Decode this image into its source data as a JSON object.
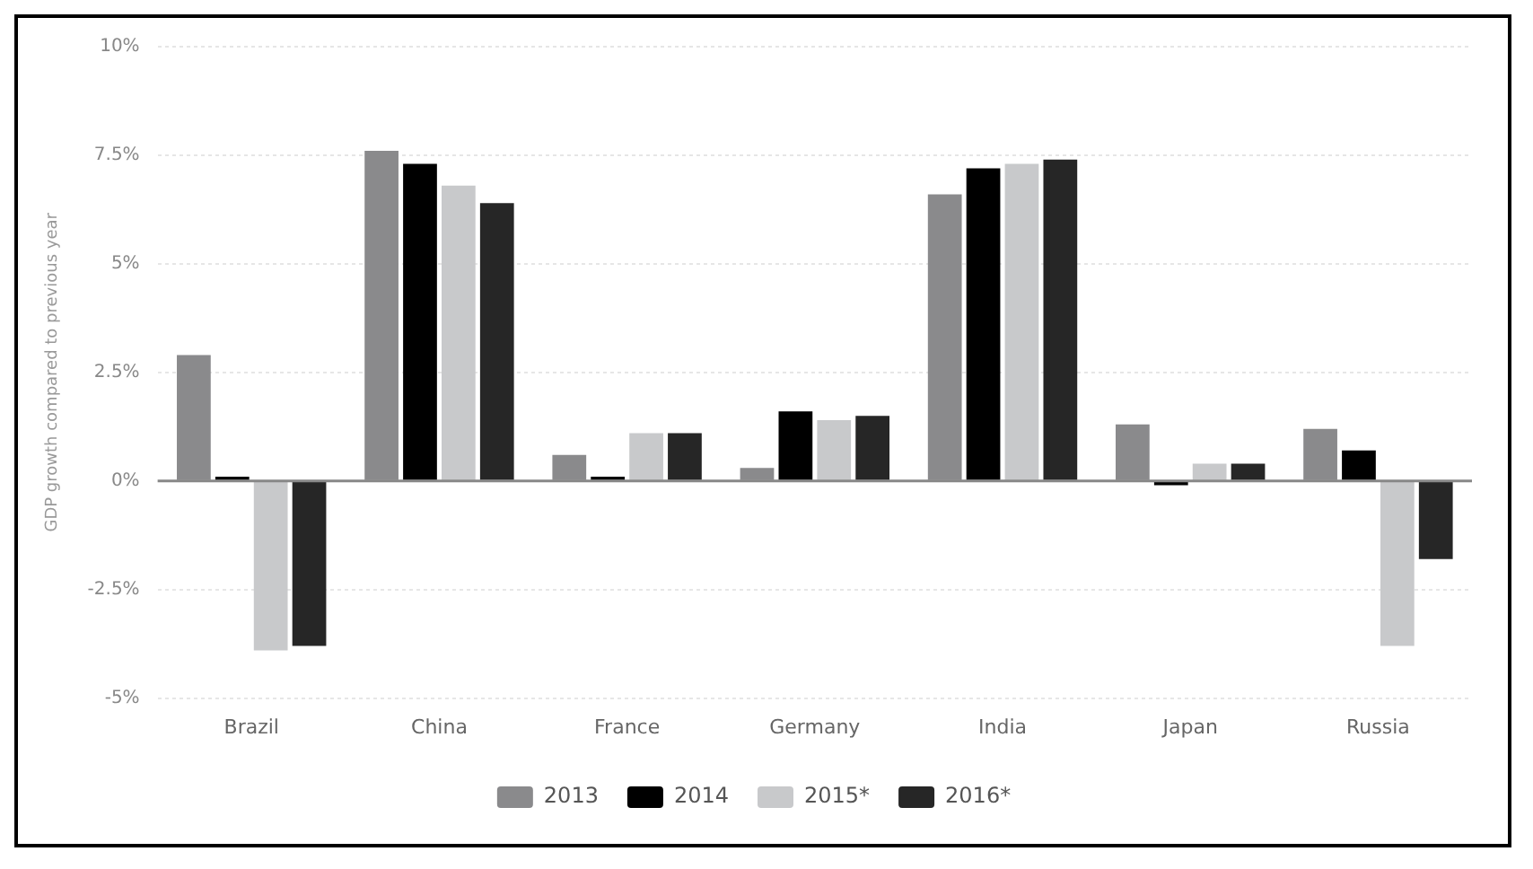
{
  "chart_data": {
    "type": "bar",
    "ylabel": "GDP growth compared to previous year",
    "categories": [
      "Brazil",
      "China",
      "France",
      "Germany",
      "India",
      "Japan",
      "Russia"
    ],
    "series": [
      {
        "name": "2013",
        "color": "#8a8a8c",
        "values": [
          2.9,
          7.6,
          0.6,
          0.3,
          6.6,
          1.3,
          1.2
        ]
      },
      {
        "name": "2014",
        "color": "#000000",
        "values": [
          0.1,
          7.3,
          0.1,
          1.6,
          7.2,
          -0.1,
          0.7
        ]
      },
      {
        "name": "2015*",
        "color": "#c8c9cb",
        "values": [
          -3.9,
          6.8,
          1.1,
          1.4,
          7.3,
          0.4,
          -3.8
        ]
      },
      {
        "name": "2016*",
        "color": "#262626",
        "values": [
          -3.8,
          6.4,
          1.1,
          1.5,
          7.4,
          0.4,
          -1.8
        ]
      }
    ],
    "ylim": [
      -5,
      10
    ],
    "yticks": [
      {
        "value": -5,
        "label": "-5%"
      },
      {
        "value": -2.5,
        "label": "-2.5%"
      },
      {
        "value": 0,
        "label": "0%"
      },
      {
        "value": 2.5,
        "label": "2.5%"
      },
      {
        "value": 5,
        "label": "5%"
      },
      {
        "value": 7.5,
        "label": "7.5%"
      },
      {
        "value": 10,
        "label": "10%"
      }
    ],
    "ref_lines": [
      {
        "axis": "y",
        "value": 0,
        "color": "#888888"
      }
    ],
    "grid": "y",
    "legend": "bottom"
  }
}
